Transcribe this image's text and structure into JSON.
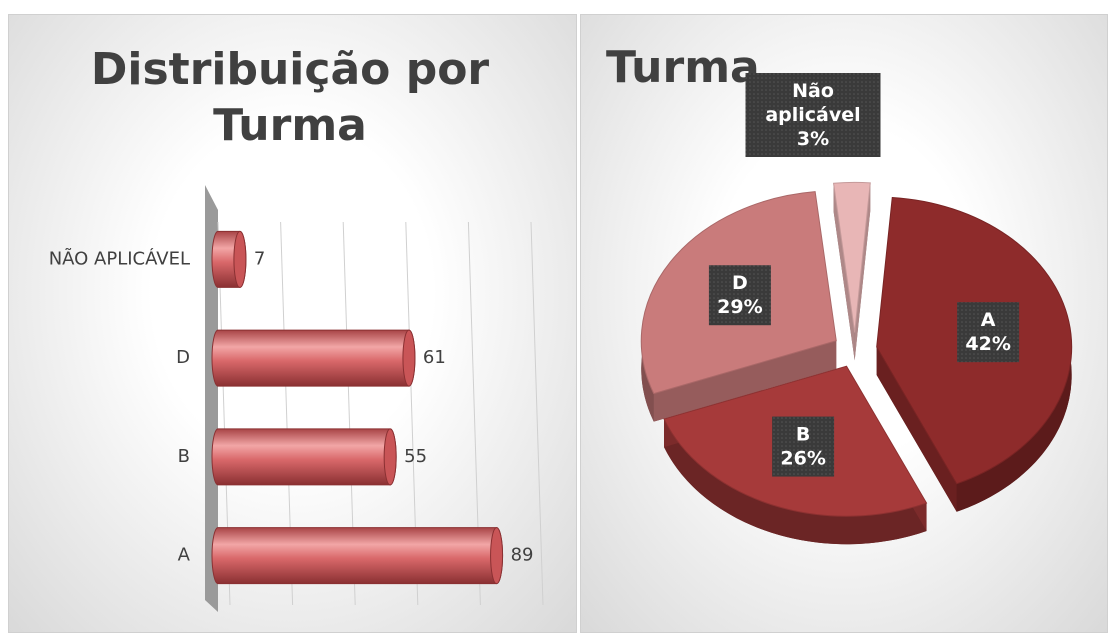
{
  "chart_data": [
    {
      "type": "bar",
      "orientation": "horizontal",
      "title": "Distribuição por Turma",
      "categories": [
        "A",
        "B",
        "D",
        "NÃO APLICÁVEL"
      ],
      "values": [
        89,
        55,
        61,
        7
      ],
      "color": "#d9686a",
      "xlim": [
        0,
        100
      ],
      "xticks": [
        0,
        20,
        40,
        60,
        80,
        100
      ],
      "grid": true
    },
    {
      "type": "pie",
      "title": "Turma",
      "categories": [
        "A",
        "B",
        "D",
        "Não aplicável"
      ],
      "values": [
        42,
        26,
        29,
        3
      ],
      "value_labels": [
        "42%",
        "26%",
        "29%",
        "3%"
      ],
      "colors": [
        "#8e2b2b",
        "#a63a3a",
        "#c97b7b",
        "#e8b6b6"
      ]
    }
  ]
}
